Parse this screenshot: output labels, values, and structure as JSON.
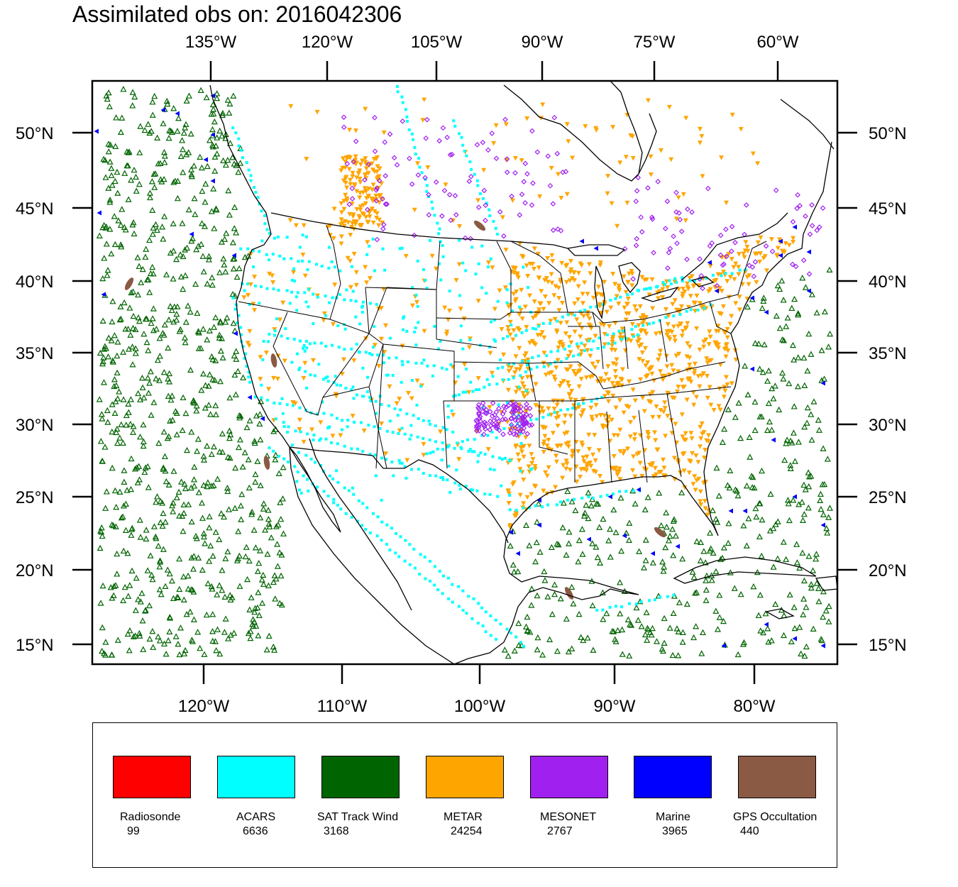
{
  "title": "Assimilated obs on: 2016042306",
  "axes": {
    "top_labels": [
      "135°W",
      "120°W",
      "105°W",
      "90°W",
      "75°W",
      "60°W"
    ],
    "bottom_labels": [
      "120°W",
      "110°W",
      "100°W",
      "90°W",
      "80°W"
    ],
    "left_labels": [
      "50°N",
      "45°N",
      "40°N",
      "35°N",
      "30°N",
      "25°N",
      "20°N",
      "15°N"
    ],
    "right_labels": [
      "50°N",
      "45°N",
      "40°N",
      "35°N",
      "30°N",
      "25°N",
      "20°N",
      "15°N"
    ]
  },
  "legend": [
    {
      "name": "Radiosonde",
      "count": "99",
      "color": "#ff0000",
      "marker": "none"
    },
    {
      "name": "ACARS",
      "count": "6636",
      "color": "#00ffff",
      "marker": "square"
    },
    {
      "name": "SAT Track Wind",
      "count": "3168",
      "color": "#006400",
      "marker": "triangle-up"
    },
    {
      "name": "METAR",
      "count": "24254",
      "color": "#ffa500",
      "marker": "triangle-down"
    },
    {
      "name": "MESONET",
      "count": "2767",
      "color": "#a020f0",
      "marker": "diamond"
    },
    {
      "name": "Marine",
      "count": "3965",
      "color": "#0000ff",
      "marker": "triangle-left"
    },
    {
      "name": "GPS Occultation",
      "count": "440",
      "color": "#8b5a44",
      "marker": "ellipse"
    }
  ]
}
